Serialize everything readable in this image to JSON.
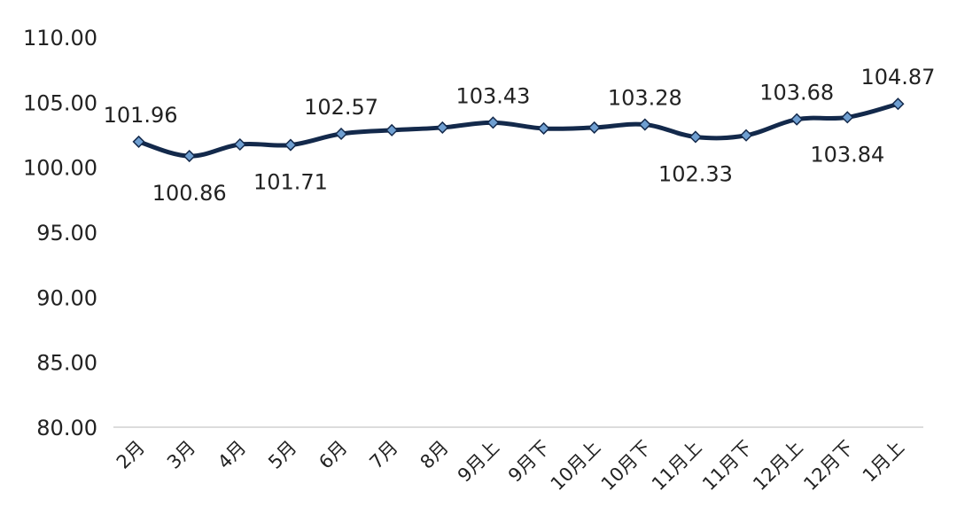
{
  "chart_data": {
    "type": "line",
    "categories": [
      "2月",
      "3月",
      "4月",
      "5月",
      "6月",
      "7月",
      "8月",
      "9月上",
      "9月下",
      "10月上",
      "10月下",
      "11月上",
      "11月下",
      "12月上",
      "12月下",
      "1月上"
    ],
    "series": [
      {
        "values": [
          101.96,
          100.86,
          101.75,
          101.71,
          102.57,
          102.85,
          103.05,
          103.43,
          102.98,
          103.05,
          103.28,
          102.33,
          102.45,
          103.68,
          103.84,
          104.87
        ],
        "labels": [
          "101.96",
          "100.86",
          "",
          "101.71",
          "102.57",
          "",
          "",
          "103.43",
          "",
          "",
          "103.28",
          "102.33",
          "",
          "103.68",
          "103.84",
          "104.87"
        ],
        "label_positions": [
          "above",
          "below",
          "none",
          "below",
          "above",
          "none",
          "none",
          "above",
          "none",
          "none",
          "above",
          "below",
          "none",
          "above",
          "below",
          "above"
        ]
      }
    ],
    "ylim": [
      80,
      110
    ],
    "yticks": [
      "80.00",
      "85.00",
      "90.00",
      "95.00",
      "100.00",
      "105.00",
      "110.00"
    ],
    "line_color": "#13294b",
    "marker_color": "#6f9fd1",
    "xlabel": "",
    "ylabel": "",
    "grid": false,
    "legend": false
  }
}
